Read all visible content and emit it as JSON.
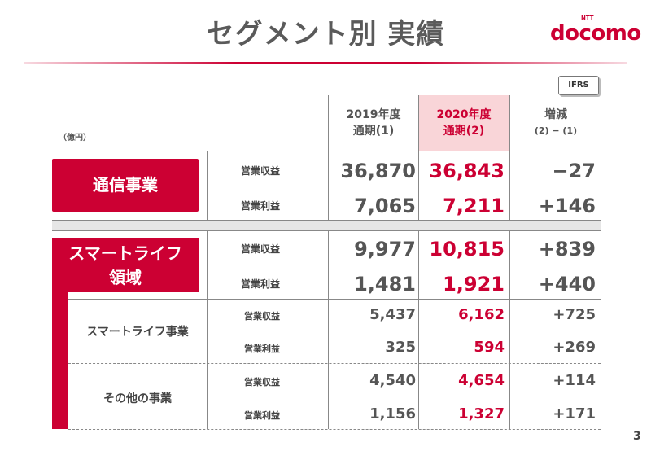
{
  "title": "セグメント別 実績",
  "logo": {
    "ntt": "NTT",
    "text": "docomo"
  },
  "badge": "IFRS",
  "unit": "（億円）",
  "headers": {
    "y2019_line1": "2019年度",
    "y2019_line2": "通期(1)",
    "y2020_line1": "2020年度",
    "y2020_line2": "通期(2)",
    "diff_line1": "増減",
    "diff_line2": "(2) − (1)"
  },
  "segments": {
    "telecom": {
      "label": "通信事業",
      "rows": [
        {
          "metric": "営業収益",
          "y2019": "36,870",
          "y2020": "36,843",
          "diff": "−27"
        },
        {
          "metric": "営業利益",
          "y2019": "7,065",
          "y2020": "7,211",
          "diff": "+146"
        }
      ]
    },
    "smartlife": {
      "label_line1": "スマートライフ",
      "label_line2": "領域",
      "rows": [
        {
          "metric": "営業収益",
          "y2019": "9,977",
          "y2020": "10,815",
          "diff": "+839"
        },
        {
          "metric": "営業利益",
          "y2019": "1,481",
          "y2020": "1,921",
          "diff": "+440"
        }
      ],
      "sub": [
        {
          "label": "スマートライフ事業",
          "rows": [
            {
              "metric": "営業収益",
              "y2019": "5,437",
              "y2020": "6,162",
              "diff": "+725"
            },
            {
              "metric": "営業利益",
              "y2019": "325",
              "y2020": "594",
              "diff": "+269"
            }
          ]
        },
        {
          "label": "その他の事業",
          "rows": [
            {
              "metric": "営業収益",
              "y2019": "4,540",
              "y2020": "4,654",
              "diff": "+114"
            },
            {
              "metric": "営業利益",
              "y2019": "1,156",
              "y2020": "1,327",
              "diff": "+171"
            }
          ]
        }
      ]
    }
  },
  "page_number": "3",
  "colors": {
    "accent": "#cc0033",
    "highlight": "#f9d5d8",
    "text": "#4a4a4a"
  }
}
